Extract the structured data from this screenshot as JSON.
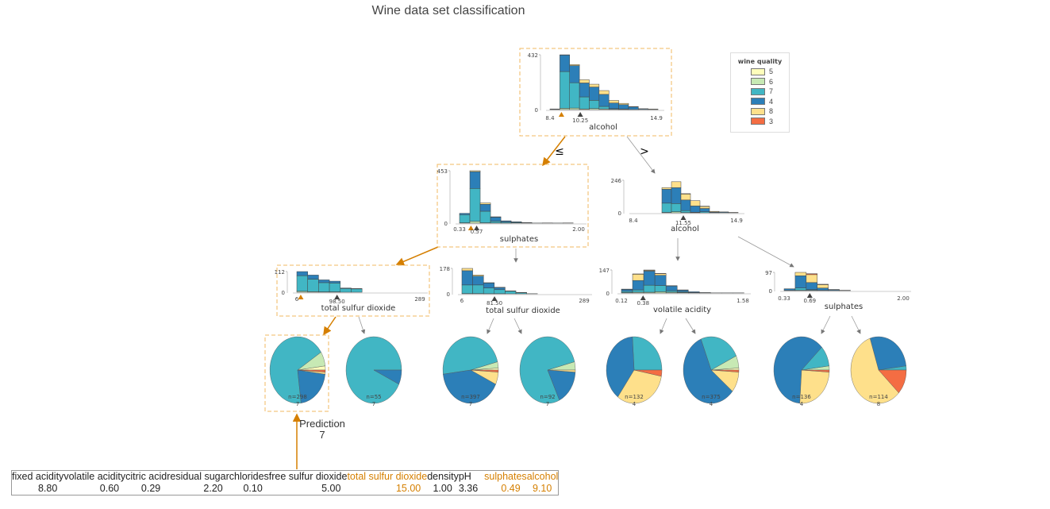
{
  "title": "Wine data set classification",
  "class_colors": {
    "5": "#FEFEBB",
    "6": "#C7E9B4",
    "7": "#41B6C4",
    "4": "#2C7FB8",
    "8": "#FEE08B",
    "3": "#F46D43"
  },
  "highlight_color": "#D57F00",
  "legend": {
    "title": "wine quality",
    "items": [
      "5",
      "6",
      "7",
      "4",
      "8",
      "3"
    ]
  },
  "edge_labels": {
    "left": "≤",
    "right": ">"
  },
  "nodes": [
    {
      "id": "root",
      "feature": "alcohol",
      "min": 8.4,
      "max": 14.9,
      "min_label": "8.4",
      "max_label": "14.9",
      "split": 10.25,
      "split_label": "10.25",
      "ymax": 432,
      "ymax_label": "432",
      "zero_label": "0",
      "bin_start": 8.4,
      "bin_width": 0.6,
      "instance": 9.1,
      "on_path": true,
      "bins": [
        [
          0,
          2,
          3,
          0,
          0
        ],
        [
          10,
          290,
          130,
          2,
          0
        ],
        [
          12,
          200,
          135,
          8,
          0
        ],
        [
          5,
          95,
          110,
          25,
          0
        ],
        [
          8,
          65,
          105,
          22,
          0
        ],
        [
          5,
          20,
          95,
          30,
          0
        ],
        [
          2,
          5,
          45,
          20,
          0
        ],
        [
          1,
          3,
          35,
          10,
          0
        ],
        [
          0,
          1,
          20,
          3,
          0
        ],
        [
          0,
          0,
          5,
          2,
          0
        ],
        [
          0,
          0,
          3,
          1,
          0
        ]
      ]
    },
    {
      "id": "sulphates-1",
      "feature": "sulphates",
      "min": 0.33,
      "max": 2.0,
      "min_label": "0.33",
      "max_label": "2.00",
      "split": 0.57,
      "split_label": "0.57",
      "ymax": 453,
      "ymax_label": "453",
      "zero_label": "0",
      "bin_start": 0.33,
      "bin_width": 0.145,
      "instance": 0.49,
      "on_path": true,
      "bins": [
        [
          3,
          70,
          12,
          0,
          0
        ],
        [
          15,
          285,
          145,
          8,
          0
        ],
        [
          3,
          100,
          60,
          12,
          0
        ],
        [
          2,
          15,
          35,
          3,
          0
        ],
        [
          1,
          8,
          10,
          1,
          0
        ],
        [
          0,
          5,
          6,
          1,
          0
        ],
        [
          0,
          2,
          3,
          0,
          0
        ],
        [
          0,
          0,
          1,
          0,
          0
        ],
        [
          0,
          0,
          2,
          0,
          0
        ],
        [
          0,
          0,
          1,
          0,
          0
        ],
        [
          0,
          0,
          2,
          0,
          0
        ]
      ]
    },
    {
      "id": "alcohol-2",
      "feature": "alcohol",
      "min": 8.4,
      "max": 14.9,
      "min_label": "8.4",
      "max_label": "14.9",
      "split": 11.55,
      "split_label": "11.55",
      "ymax": 246,
      "ymax_label": "246",
      "zero_label": "0",
      "bin_start": 10.2,
      "bin_width": 0.6,
      "instance": null,
      "on_path": false,
      "bins": [
        [
          3,
          70,
          105,
          12,
          0
        ],
        [
          8,
          62,
          120,
          45,
          0
        ],
        [
          2,
          15,
          80,
          45,
          3
        ],
        [
          1,
          3,
          48,
          40,
          0
        ],
        [
          0,
          8,
          25,
          15,
          2
        ],
        [
          0,
          1,
          5,
          5,
          0
        ],
        [
          0,
          0,
          5,
          2,
          0
        ],
        [
          0,
          0,
          2,
          1,
          0
        ]
      ]
    },
    {
      "id": "tsd-1",
      "feature": "total sulfur dioxide",
      "min": 6,
      "max": 289,
      "min_label": "6",
      "max_label": "289",
      "split": 98.5,
      "split_label": "98.50",
      "ymax": 112,
      "ymax_label": "112",
      "zero_label": "0",
      "bin_start": 6,
      "bin_width": 25,
      "instance": 15,
      "on_path": true,
      "bins": [
        [
          5,
          85,
          22,
          0,
          0
        ],
        [
          3,
          68,
          22,
          0,
          0
        ],
        [
          2,
          50,
          15,
          0,
          0
        ],
        [
          2,
          48,
          10,
          0,
          0
        ],
        [
          0,
          20,
          3,
          0,
          0
        ],
        [
          0,
          18,
          2,
          0,
          0
        ]
      ]
    },
    {
      "id": "tsd-2",
      "feature": "total sulfur dioxide",
      "min": 6,
      "max": 289,
      "min_label": "6",
      "max_label": "289",
      "split": 81.5,
      "split_label": "81.50",
      "ymax": 178,
      "ymax_label": "178",
      "zero_label": "0",
      "bin_start": 6,
      "bin_width": 25,
      "instance": null,
      "on_path": false,
      "bins": [
        [
          2,
          60,
          100,
          16,
          0
        ],
        [
          2,
          60,
          62,
          8,
          0
        ],
        [
          1,
          40,
          35,
          2,
          0
        ],
        [
          1,
          28,
          15,
          2,
          0
        ],
        [
          0,
          18,
          3,
          0,
          0
        ],
        [
          0,
          8,
          2,
          0,
          0
        ],
        [
          0,
          1,
          0,
          0,
          0
        ]
      ]
    },
    {
      "id": "volatile-acidity",
      "feature": "volatile acidity",
      "min": 0.12,
      "max": 1.58,
      "min_label": "0.12",
      "max_label": "1.58",
      "split": 0.38,
      "split_label": "0.38",
      "ymax": 147,
      "ymax_label": "147",
      "zero_label": "0",
      "bin_start": 0.12,
      "bin_width": 0.134,
      "instance": null,
      "on_path": false,
      "bins": [
        [
          3,
          8,
          12,
          2,
          0
        ],
        [
          5,
          15,
          60,
          40,
          2
        ],
        [
          5,
          45,
          90,
          5,
          2
        ],
        [
          8,
          40,
          65,
          10,
          2
        ],
        [
          5,
          10,
          30,
          2,
          0
        ],
        [
          3,
          5,
          10,
          2,
          0
        ],
        [
          1,
          2,
          5,
          0,
          0
        ],
        [
          0,
          1,
          2,
          0,
          0
        ],
        [
          0,
          0,
          1,
          0,
          0
        ],
        [
          0,
          0,
          1,
          0,
          0
        ],
        [
          0,
          0,
          1,
          0,
          0
        ]
      ]
    },
    {
      "id": "sulphates-2",
      "feature": "sulphates",
      "min": 0.33,
      "max": 2.0,
      "min_label": "0.33",
      "max_label": "2.00",
      "split": 0.69,
      "split_label": "0.69",
      "ymax": 97,
      "ymax_label": "97",
      "zero_label": "0",
      "bin_start": 0.33,
      "bin_width": 0.155,
      "instance": null,
      "on_path": false,
      "bins": [
        [
          0,
          2,
          8,
          0,
          0
        ],
        [
          2,
          12,
          65,
          18,
          0
        ],
        [
          2,
          3,
          38,
          42,
          5
        ],
        [
          0,
          2,
          12,
          18,
          2
        ],
        [
          0,
          1,
          4,
          1,
          0
        ],
        [
          0,
          0,
          2,
          0,
          0
        ]
      ]
    }
  ],
  "stack_order": [
    "6",
    "7",
    "4",
    "8",
    "3"
  ],
  "leaves": [
    {
      "n_label": "n=298",
      "class_label": "7",
      "on_path": true,
      "fractions": {
        "5": 0.02,
        "6": 0.07,
        "7": 0.68,
        "4": 0.21,
        "8": 0.01,
        "3": 0.01
      }
    },
    {
      "n_label": "n=55",
      "class_label": "7",
      "on_path": false,
      "fractions": {
        "7": 0.93,
        "4": 0.07
      }
    },
    {
      "n_label": "n=397",
      "class_label": "7",
      "on_path": false,
      "fractions": {
        "5": 0.01,
        "6": 0.03,
        "7": 0.48,
        "4": 0.41,
        "8": 0.06,
        "3": 0.01
      }
    },
    {
      "n_label": "n=92",
      "class_label": "7",
      "on_path": false,
      "fractions": {
        "6": 0.04,
        "7": 0.78,
        "4": 0.17,
        "8": 0.01
      }
    },
    {
      "n_label": "n=132",
      "class_label": "4",
      "on_path": false,
      "fractions": {
        "7": 0.26,
        "4": 0.39,
        "8": 0.32,
        "3": 0.03
      }
    },
    {
      "n_label": "n=375",
      "class_label": "4",
      "on_path": false,
      "fractions": {
        "5": 0.01,
        "6": 0.06,
        "7": 0.24,
        "4": 0.58,
        "8": 0.1,
        "3": 0.01
      }
    },
    {
      "n_label": "n=136",
      "class_label": "4",
      "on_path": false,
      "fractions": {
        "6": 0.02,
        "7": 0.1,
        "4": 0.62,
        "8": 0.25,
        "3": 0.01
      }
    },
    {
      "n_label": "n=114",
      "class_label": "8",
      "on_path": false,
      "fractions": {
        "7": 0.02,
        "4": 0.28,
        "8": 0.58,
        "3": 0.12
      }
    }
  ],
  "prediction": {
    "label": "Prediction",
    "value": "7"
  },
  "instance_table": {
    "features": [
      {
        "name": "fixed acidity",
        "value": "8.80",
        "highlight": false
      },
      {
        "name": "volatile acidity",
        "value": "0.60",
        "highlight": false
      },
      {
        "name": "citric acid",
        "value": "0.29",
        "highlight": false
      },
      {
        "name": "residual sugar",
        "value": "2.20",
        "highlight": false
      },
      {
        "name": "chlorides",
        "value": "0.10",
        "highlight": false
      },
      {
        "name": "free sulfur dioxide",
        "value": "5.00",
        "highlight": false
      },
      {
        "name": "total sulfur dioxide",
        "value": "15.00",
        "highlight": true
      },
      {
        "name": "density",
        "value": "1.00",
        "highlight": false
      },
      {
        "name": "pH",
        "value": "3.36",
        "highlight": false
      },
      {
        "name": "sulphates",
        "value": "0.49",
        "highlight": true
      },
      {
        "name": "alcohol",
        "value": "9.10",
        "highlight": true
      }
    ]
  }
}
